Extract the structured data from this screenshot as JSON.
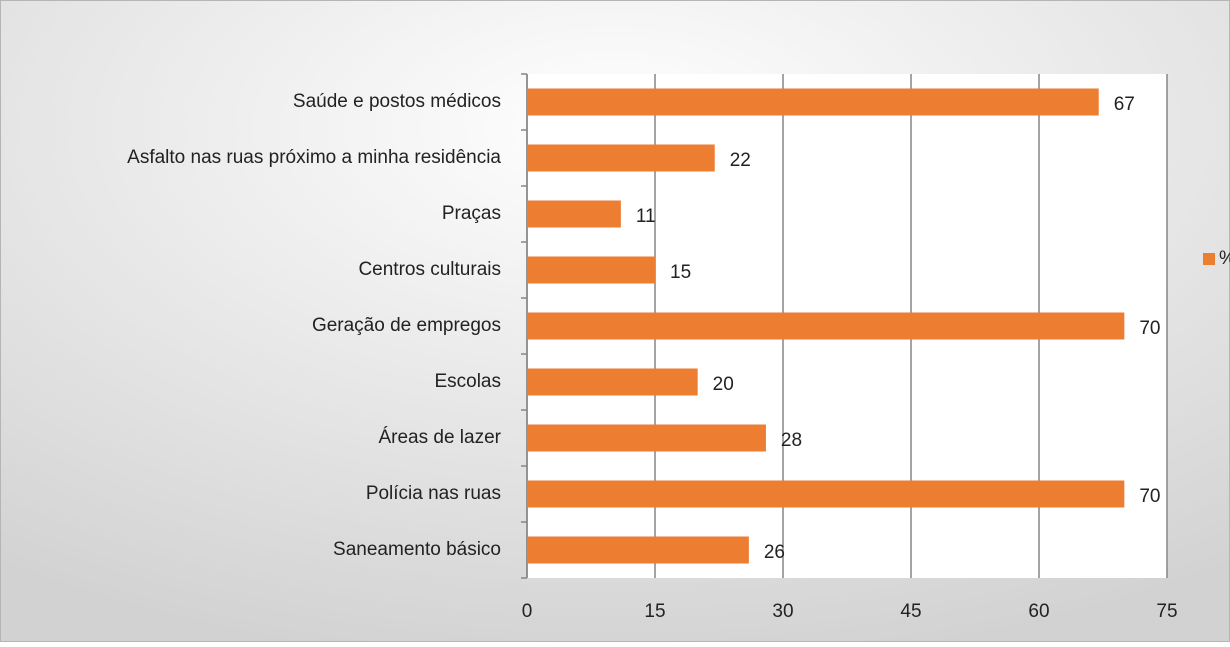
{
  "chart_data": {
    "type": "bar",
    "orientation": "horizontal",
    "categories": [
      "Saúde e postos médicos",
      "Asfalto nas ruas próximo a minha residência",
      "Praças",
      "Centros culturais",
      "Geração de empregos",
      "Escolas",
      "Áreas de lazer",
      "Polícia nas ruas",
      "Saneamento básico"
    ],
    "series": [
      {
        "name": "%",
        "color": "#ed7d31",
        "values": [
          67,
          22,
          11,
          15,
          70,
          20,
          28,
          70,
          26
        ]
      }
    ],
    "xlim": [
      0,
      75
    ],
    "xticks": [
      0,
      15,
      30,
      45,
      60,
      75
    ],
    "grid": true,
    "legend": "right"
  }
}
